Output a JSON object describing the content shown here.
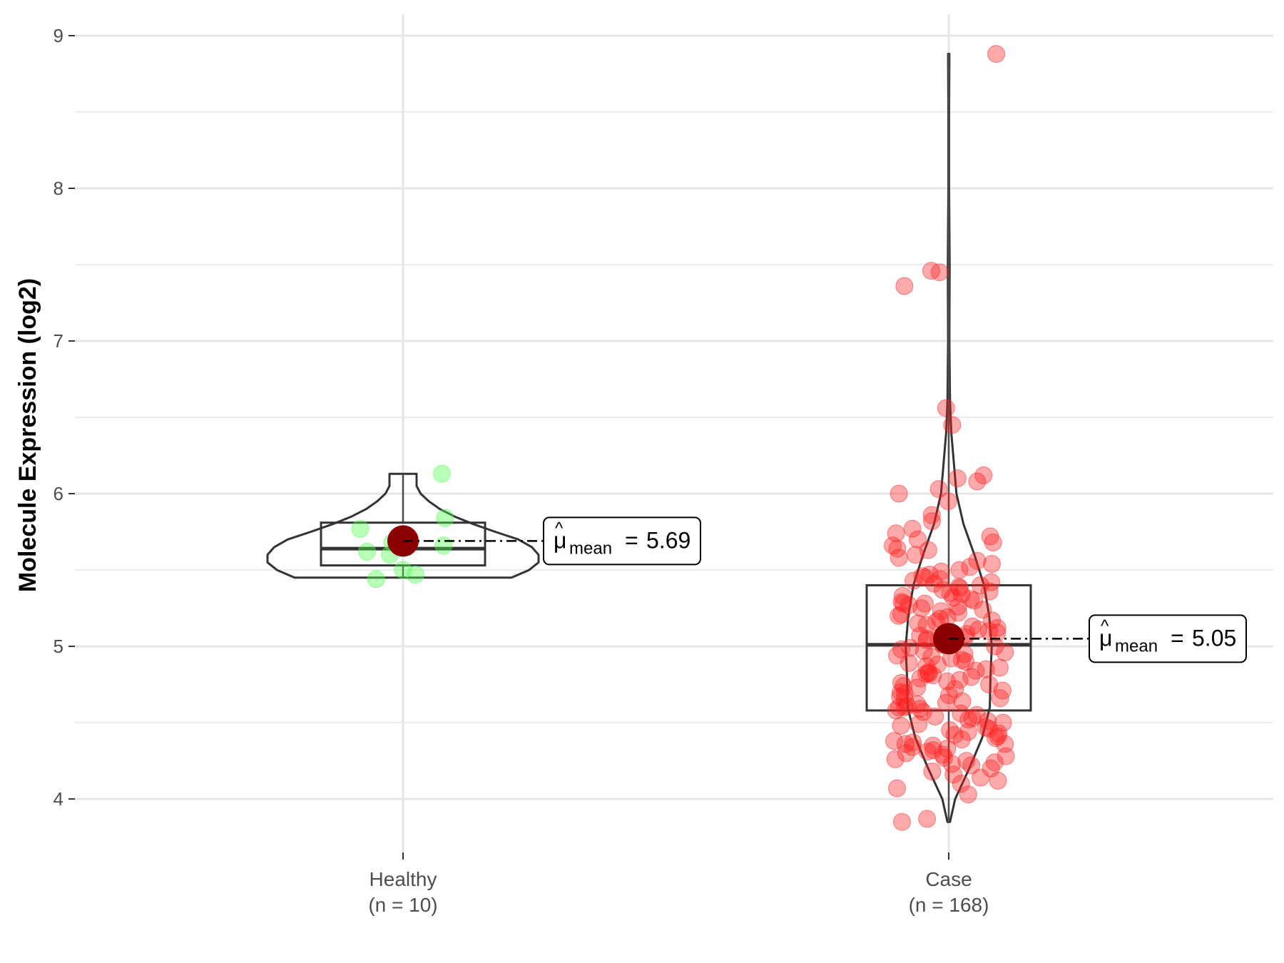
{
  "chart_data": {
    "type": "violin",
    "ylabel": "Molecule Expression (log2)",
    "xlabel": "",
    "ylim": [
      3.65,
      9.14
    ],
    "yticks": [
      4,
      5,
      6,
      7,
      8,
      9
    ],
    "grid": true,
    "legend": "none",
    "groups": [
      {
        "name": "Healthy",
        "n_label": "(n = 10)",
        "color": "#4dff4d",
        "points": [
          6.13,
          5.84,
          5.77,
          5.68,
          5.66,
          5.62,
          5.6,
          5.5,
          5.47,
          5.44
        ],
        "box": {
          "q1": 5.53,
          "median": 5.64,
          "q3": 5.81,
          "whisker_low": 5.45,
          "whisker_high": 6.13
        },
        "mean": 5.69,
        "mean_label": "5.69",
        "violin": {
          "y_min": 5.45,
          "y_max": 6.13,
          "profile": [
            [
              5.45,
              0.8
            ],
            [
              5.5,
              0.93
            ],
            [
              5.55,
              1.0
            ],
            [
              5.6,
              1.0
            ],
            [
              5.65,
              0.95
            ],
            [
              5.7,
              0.85
            ],
            [
              5.75,
              0.68
            ],
            [
              5.8,
              0.52
            ],
            [
              5.85,
              0.38
            ],
            [
              5.9,
              0.27
            ],
            [
              5.95,
              0.19
            ],
            [
              6.0,
              0.13
            ],
            [
              6.05,
              0.1
            ],
            [
              6.1,
              0.1
            ],
            [
              6.13,
              0.1
            ]
          ]
        }
      },
      {
        "name": "Case",
        "n_label": "(n = 168)",
        "color": "#ff2020",
        "points": [
          8.88,
          7.46,
          7.45,
          7.36,
          6.56,
          6.45,
          6.12,
          6.1,
          6.08,
          6.03,
          6.0,
          5.95,
          5.86,
          5.82,
          5.77,
          5.74,
          5.72,
          5.7,
          5.68,
          5.66,
          5.64,
          5.63,
          5.6,
          5.58,
          5.56,
          5.54,
          5.52,
          5.5,
          5.49,
          5.47,
          5.46,
          5.45,
          5.44,
          5.43,
          5.42,
          5.41,
          5.4,
          5.39,
          5.38,
          5.37,
          5.36,
          5.35,
          5.34,
          5.33,
          5.32,
          5.31,
          5.3,
          5.29,
          5.28,
          5.27,
          5.26,
          5.25,
          5.24,
          5.23,
          5.22,
          5.21,
          5.2,
          5.19,
          5.18,
          5.17,
          5.16,
          5.15,
          5.14,
          5.13,
          5.12,
          5.11,
          5.1,
          5.09,
          5.08,
          5.07,
          5.06,
          5.05,
          5.04,
          5.03,
          5.02,
          5.01,
          5.0,
          4.99,
          4.98,
          4.97,
          4.96,
          4.95,
          4.94,
          4.93,
          4.92,
          4.91,
          4.9,
          4.89,
          4.88,
          4.87,
          4.86,
          4.85,
          4.84,
          4.83,
          4.82,
          4.81,
          4.8,
          4.79,
          4.78,
          4.77,
          4.76,
          4.75,
          4.74,
          4.73,
          4.72,
          4.71,
          4.7,
          4.69,
          4.68,
          4.67,
          4.66,
          4.65,
          4.64,
          4.63,
          4.62,
          4.61,
          4.6,
          4.59,
          4.58,
          4.57,
          4.56,
          4.55,
          4.54,
          4.53,
          4.52,
          4.51,
          4.5,
          4.49,
          4.48,
          4.47,
          4.46,
          4.45,
          4.44,
          4.43,
          4.42,
          4.41,
          4.4,
          4.39,
          4.38,
          4.37,
          4.36,
          4.35,
          4.34,
          4.33,
          4.32,
          4.31,
          4.3,
          4.29,
          4.28,
          4.27,
          4.26,
          4.25,
          4.24,
          4.23,
          4.22,
          4.2,
          4.18,
          4.16,
          4.14,
          4.12,
          4.1,
          4.07,
          4.03,
          3.87,
          3.85,
          4.36,
          4.6,
          4.82,
          5.05,
          5.28
        ],
        "box": {
          "q1": 4.58,
          "median": 5.01,
          "q3": 5.4,
          "whisker_low": 3.85,
          "whisker_high": 8.88
        },
        "mean": 5.05,
        "mean_label": "5.05",
        "violin": {
          "y_min": 3.85,
          "y_max": 8.88,
          "profile": [
            [
              3.85,
              0.02
            ],
            [
              4.0,
              0.1
            ],
            [
              4.2,
              0.32
            ],
            [
              4.4,
              0.52
            ],
            [
              4.6,
              0.64
            ],
            [
              4.8,
              0.65
            ],
            [
              5.0,
              0.67
            ],
            [
              5.2,
              0.63
            ],
            [
              5.4,
              0.55
            ],
            [
              5.6,
              0.4
            ],
            [
              5.8,
              0.23
            ],
            [
              6.0,
              0.12
            ],
            [
              6.2,
              0.08
            ],
            [
              6.4,
              0.04
            ],
            [
              6.6,
              0.02
            ],
            [
              7.0,
              0.01
            ],
            [
              7.5,
              0.015
            ],
            [
              8.0,
              0.005
            ],
            [
              8.5,
              0.005
            ],
            [
              8.88,
              0.01
            ]
          ]
        }
      }
    ],
    "mean_annotation": {
      "symbol": "μ",
      "subscript": "mean",
      "equals": "="
    },
    "mean_point_color": "#8b0000"
  }
}
